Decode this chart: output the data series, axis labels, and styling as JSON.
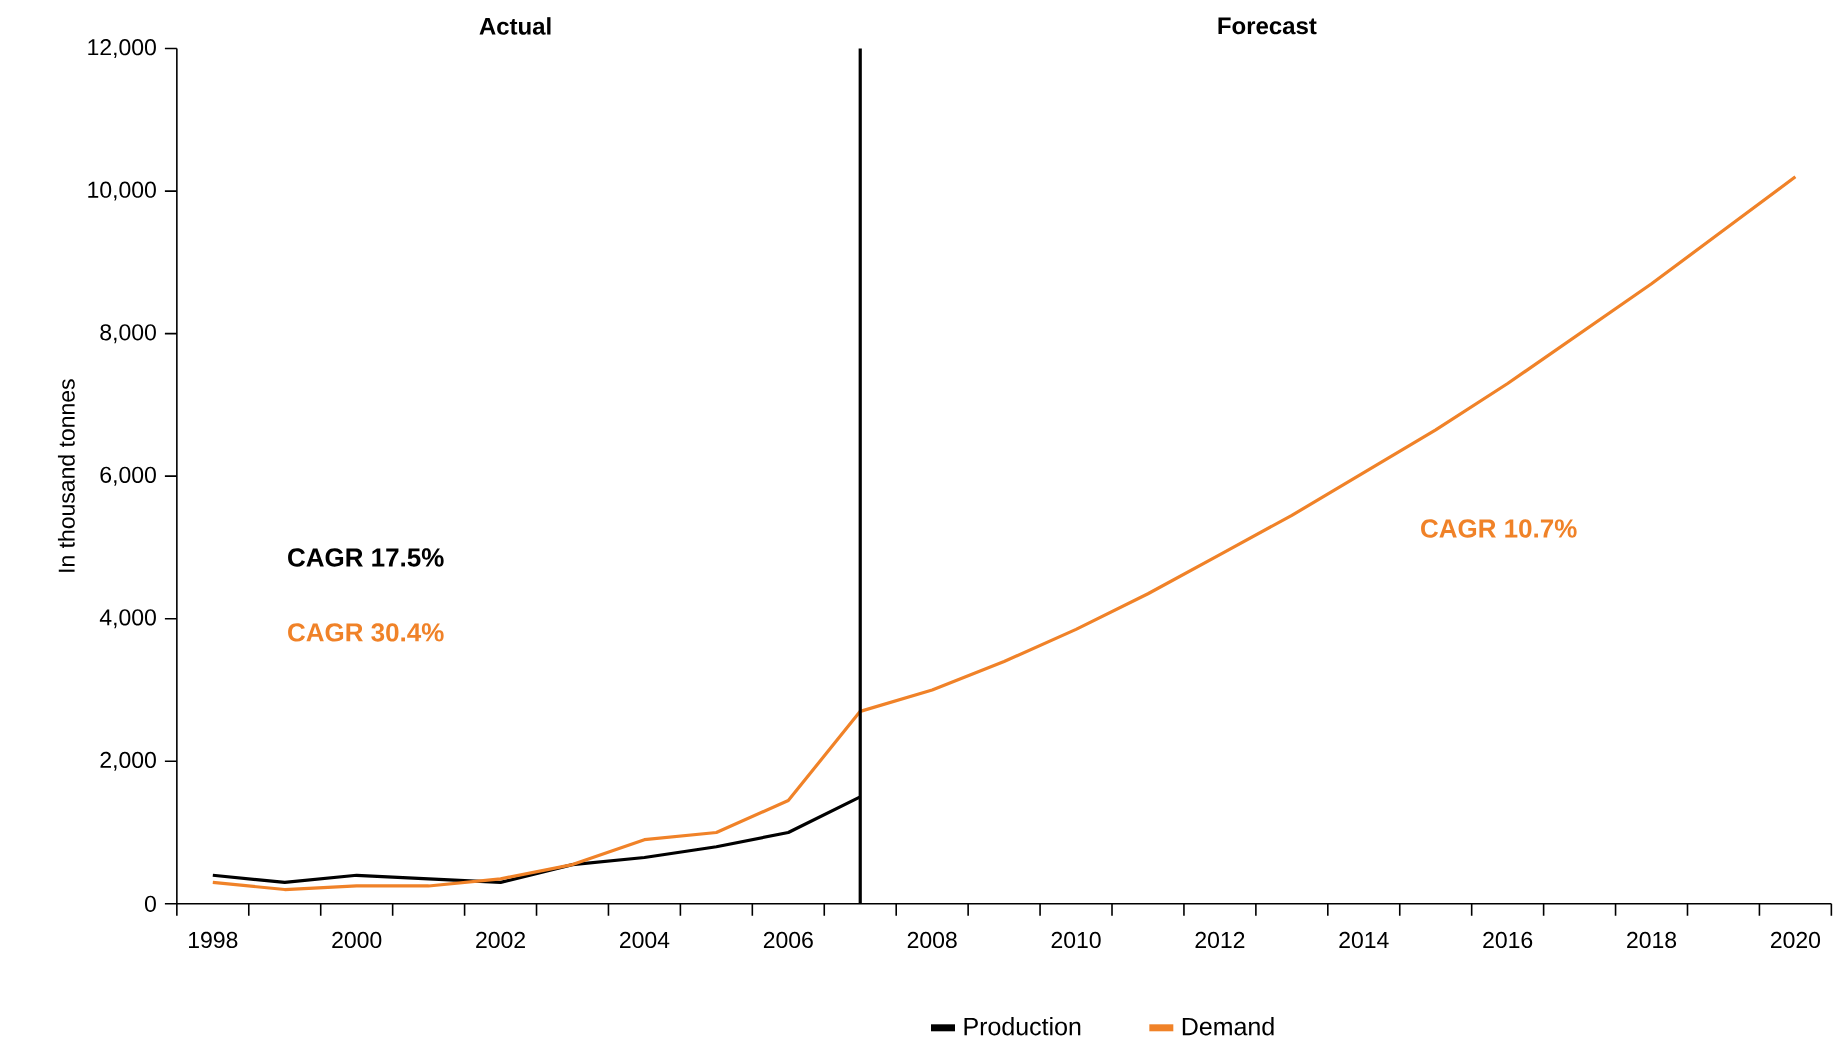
{
  "chart_data": {
    "type": "line",
    "ylabel": "In thousand tonnes",
    "x": [
      1998,
      1999,
      2000,
      2001,
      2002,
      2003,
      2004,
      2005,
      2006,
      2007,
      2008,
      2009,
      2010,
      2011,
      2012,
      2013,
      2014,
      2015,
      2016,
      2017,
      2018,
      2019,
      2020
    ],
    "series": [
      {
        "name": "Production",
        "color": "#000000",
        "x": [
          1998,
          1999,
          2000,
          2001,
          2002,
          2003,
          2004,
          2005,
          2006,
          2007
        ],
        "values": [
          400,
          300,
          400,
          350,
          300,
          550,
          650,
          800,
          1000,
          1500
        ]
      },
      {
        "name": "Demand",
        "color": "#f08228",
        "values": [
          300,
          200,
          250,
          250,
          350,
          550,
          900,
          1000,
          1450,
          2700,
          3000,
          3400,
          3850,
          4350,
          4900,
          5450,
          6050,
          6650,
          7300,
          8000,
          8700,
          9450,
          10200
        ]
      }
    ],
    "xlim": [
      1997.5,
      2020.5
    ],
    "xticks": [
      1998,
      2000,
      2002,
      2004,
      2006,
      2008,
      2010,
      2012,
      2014,
      2016,
      2018,
      2020,
      {
        "value": 1997.5,
        "label": null
      },
      {
        "value": 1998.5,
        "label": null
      },
      {
        "value": 1999.5,
        "label": null
      },
      {
        "value": 2000.5,
        "label": null
      },
      {
        "value": 2001.5,
        "label": null
      },
      {
        "value": 2002.5,
        "label": null
      },
      {
        "value": 2003.5,
        "label": null
      },
      {
        "value": 2004.5,
        "label": null
      },
      {
        "value": 2005.5,
        "label": null
      },
      {
        "value": 2006.5,
        "label": null
      },
      {
        "value": 2007.5,
        "label": null
      },
      {
        "value": 2008.5,
        "label": null
      },
      {
        "value": 2009.5,
        "label": null
      },
      {
        "value": 2010.5,
        "label": null
      },
      {
        "value": 2011.5,
        "label": null
      },
      {
        "value": 2012.5,
        "label": null
      },
      {
        "value": 2013.5,
        "label": null
      },
      {
        "value": 2014.5,
        "label": null
      },
      {
        "value": 2015.5,
        "label": null
      },
      {
        "value": 2016.5,
        "label": null
      },
      {
        "value": 2017.5,
        "label": null
      },
      {
        "value": 2018.5,
        "label": null
      },
      {
        "value": 2019.5,
        "label": null
      },
      {
        "value": 2020.5,
        "label": null
      }
    ],
    "ylim": [
      0,
      12000
    ],
    "yticks": [
      0,
      {
        "value": 2000,
        "label": "2,000"
      },
      {
        "value": 4000,
        "label": "4,000"
      },
      {
        "value": 6000,
        "label": "6,000"
      },
      {
        "value": 8000,
        "label": "8,000"
      },
      {
        "value": 10000,
        "label": "10,000"
      },
      {
        "value": 12000,
        "label": "12,000"
      }
    ],
    "ref_lines": [
      {
        "axis": "x",
        "value": 2007,
        "color": "#000000"
      }
    ],
    "annotations": [
      "Actual",
      "Forecast",
      "CAGR 17.5%",
      "CAGR 30.4%",
      "CAGR 10.7%"
    ],
    "grid": false,
    "legend": "bottom",
    "marker": "none",
    "line_style": "solid"
  }
}
